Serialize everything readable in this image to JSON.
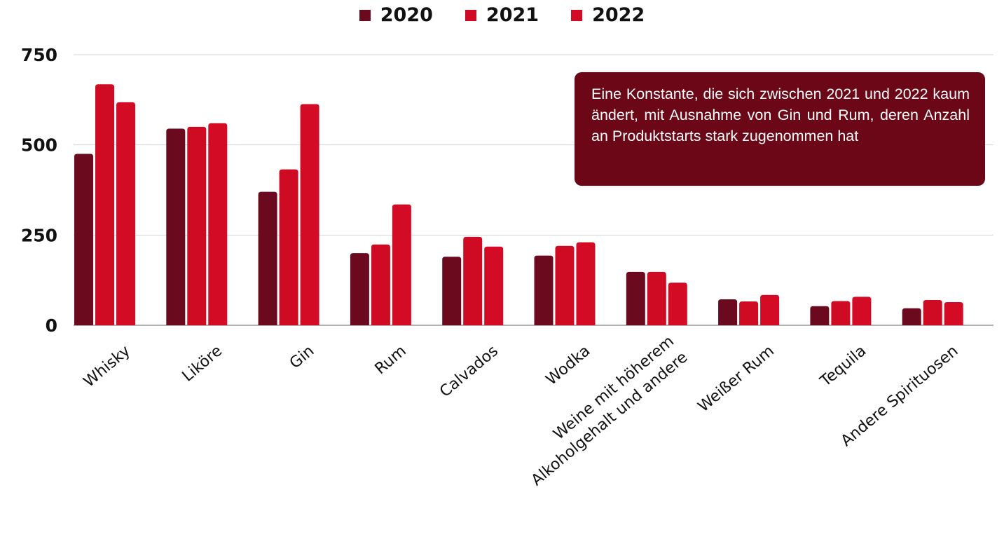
{
  "legend": [
    {
      "label": "2020",
      "color": "#6b0a1e"
    },
    {
      "label": "2021",
      "color": "#cf0a23"
    },
    {
      "label": "2022",
      "color": "#d40b25"
    }
  ],
  "annotation": "Eine Konstante, die sich zwischen 2021 und 2022 kaum ändert, mit Ausnahme von Gin und Rum, deren Anzahl an Produktstarts stark zugenommen hat",
  "chart_data": {
    "type": "bar",
    "categories": [
      "Whisky",
      "Liköre",
      "Gin",
      "Rum",
      "Calvados",
      "Wodka",
      "Weine mit höherem\nAlkoholgehalt und andere",
      "Weißer Rum",
      "Tequila",
      "Andere Spirituosen"
    ],
    "series": [
      {
        "name": "2020",
        "color": "#6b0a1e",
        "values": [
          475,
          545,
          370,
          200,
          190,
          193,
          148,
          72,
          53,
          47
        ]
      },
      {
        "name": "2021",
        "color": "#cf0a23",
        "values": [
          668,
          550,
          432,
          224,
          245,
          220,
          148,
          66,
          67,
          70
        ]
      },
      {
        "name": "2022",
        "color": "#d40b25",
        "values": [
          618,
          560,
          613,
          335,
          218,
          230,
          118,
          84,
          79,
          64
        ]
      }
    ],
    "yticks": [
      0,
      250,
      500,
      750
    ],
    "ylim": [
      0,
      750
    ],
    "grid": true,
    "legend_position": "top-center",
    "title": "",
    "xlabel": "",
    "ylabel": ""
  }
}
